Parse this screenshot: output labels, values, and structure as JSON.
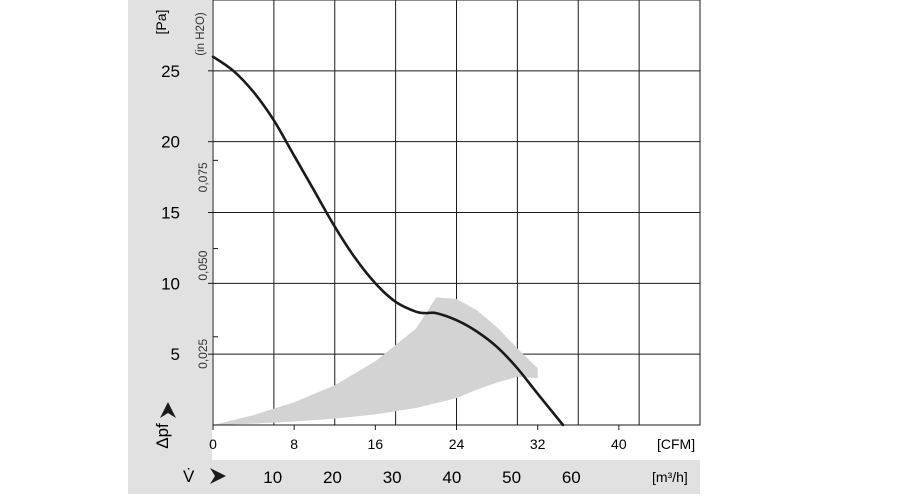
{
  "chart_data": {
    "type": "line",
    "title": "",
    "ylabel_left": "Δpf",
    "yunit_left": "[Pa]",
    "yunit_right": "(in H2O)",
    "xlabel_bottom": "V̇",
    "xunit_cfm": "[CFM]",
    "xunit_m3h": "[m³/h]",
    "x_cfm_ticks": [
      "0",
      "8",
      "16",
      "24",
      "32",
      "40"
    ],
    "x_m3h_ticks": [
      "10",
      "20",
      "30",
      "40",
      "50",
      "60"
    ],
    "y_pa_ticks": [
      "5",
      "10",
      "15",
      "20",
      "25"
    ],
    "y_inh2o_ticks": [
      "0,025",
      "0,050",
      "0,075"
    ],
    "xlim_cfm": [
      0,
      48
    ],
    "ylim_pa": [
      0,
      30
    ],
    "grid": true,
    "series": [
      {
        "x_cfm": [
          0,
          2,
          4,
          6,
          8,
          10,
          12,
          14,
          16,
          18,
          20,
          21,
          22,
          24,
          26,
          28,
          30,
          32,
          34.5
        ],
        "y_pa": [
          26,
          25.0,
          23.5,
          21.5,
          19.0,
          16.5,
          14.0,
          11.8,
          10.0,
          8.7,
          8.0,
          7.9,
          7.9,
          7.4,
          6.6,
          5.5,
          4.0,
          2.2,
          0
        ],
        "color": "#1a1a1a"
      }
    ],
    "operating_region": {
      "color": "#d3d3d3",
      "upper_x_cfm": [
        0,
        4,
        8,
        12,
        16,
        20,
        22,
        24,
        26,
        28,
        30,
        32
      ],
      "upper_y_pa": [
        0,
        0.7,
        1.6,
        2.8,
        4.5,
        6.8,
        9.0,
        8.9,
        8.1,
        6.9,
        5.4,
        4.0
      ],
      "lower_x_cfm": [
        32,
        30,
        28,
        26,
        24,
        20,
        16,
        12,
        8,
        4,
        0
      ],
      "lower_y_pa": [
        3.3,
        3.4,
        3.0,
        2.5,
        1.9,
        1.2,
        0.75,
        0.45,
        0.25,
        0.1,
        0
      ]
    }
  }
}
